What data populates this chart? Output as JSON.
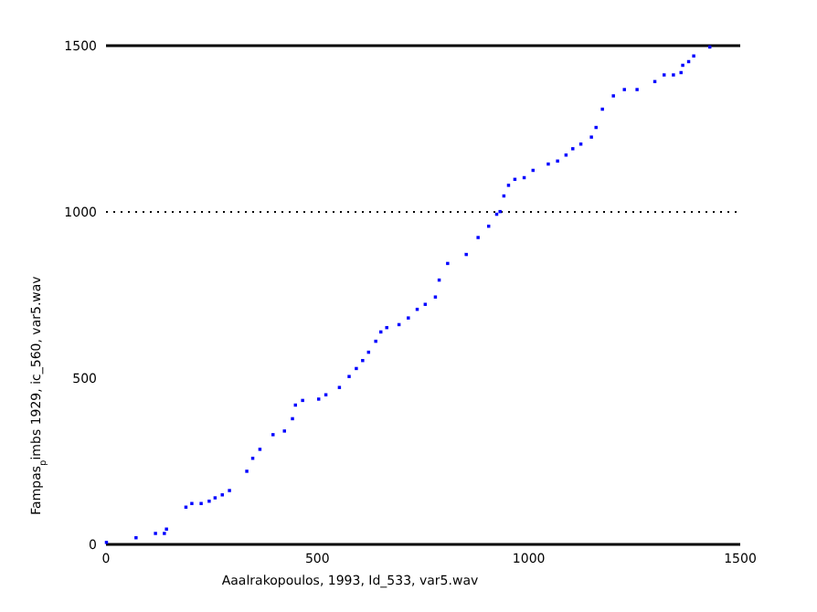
{
  "chart_data": {
    "type": "scatter",
    "xlabel": "Aaalrakopoulos, 1993, Id_533, var5.wav",
    "ylabel": "Fampas$_{p}$imbs 1929, ic_560, var5.wav",
    "xlim": [
      0,
      1500
    ],
    "ylim": [
      0,
      1500
    ],
    "xticks": [
      0,
      500,
      1000,
      1500
    ],
    "yticks": [
      0,
      500,
      1000,
      1500
    ],
    "marker": "square",
    "ref_lines": [
      {
        "axis": "y",
        "value": 1000,
        "line_style": "dotted",
        "color": "#000000"
      },
      {
        "axis": "y",
        "value": 1500,
        "line_style": "solid",
        "color": "#000000"
      }
    ],
    "series": [
      {
        "color": "#0000ff",
        "x": [
          1,
          71,
          117,
          138,
          143,
          189,
          203,
          225,
          244,
          258,
          275,
          292,
          333,
          347,
          364,
          395,
          422,
          441,
          448,
          465,
          503,
          520,
          552,
          575,
          592,
          607,
          621,
          638,
          650,
          664,
          693,
          715,
          736,
          755,
          779,
          788,
          808,
          852,
          880,
          905,
          924,
          932,
          941,
          952,
          967,
          989,
          1010,
          1046,
          1068,
          1088,
          1104,
          1123,
          1148,
          1159,
          1174,
          1200,
          1226,
          1256,
          1298,
          1320,
          1342,
          1360,
          1364,
          1378,
          1390,
          1428
        ],
        "values": [
          6,
          20,
          33,
          33,
          46,
          112,
          123,
          123,
          130,
          140,
          149,
          162,
          220,
          259,
          286,
          330,
          341,
          378,
          419,
          433,
          437,
          450,
          472,
          505,
          529,
          553,
          578,
          611,
          639,
          652,
          661,
          681,
          707,
          722,
          744,
          795,
          845,
          872,
          923,
          957,
          993,
          1001,
          1048,
          1080,
          1098,
          1103,
          1125,
          1144,
          1153,
          1171,
          1190,
          1204,
          1225,
          1254,
          1309,
          1349,
          1368,
          1368,
          1392,
          1412,
          1412,
          1419,
          1441,
          1452,
          1469,
          1496
        ]
      }
    ]
  }
}
